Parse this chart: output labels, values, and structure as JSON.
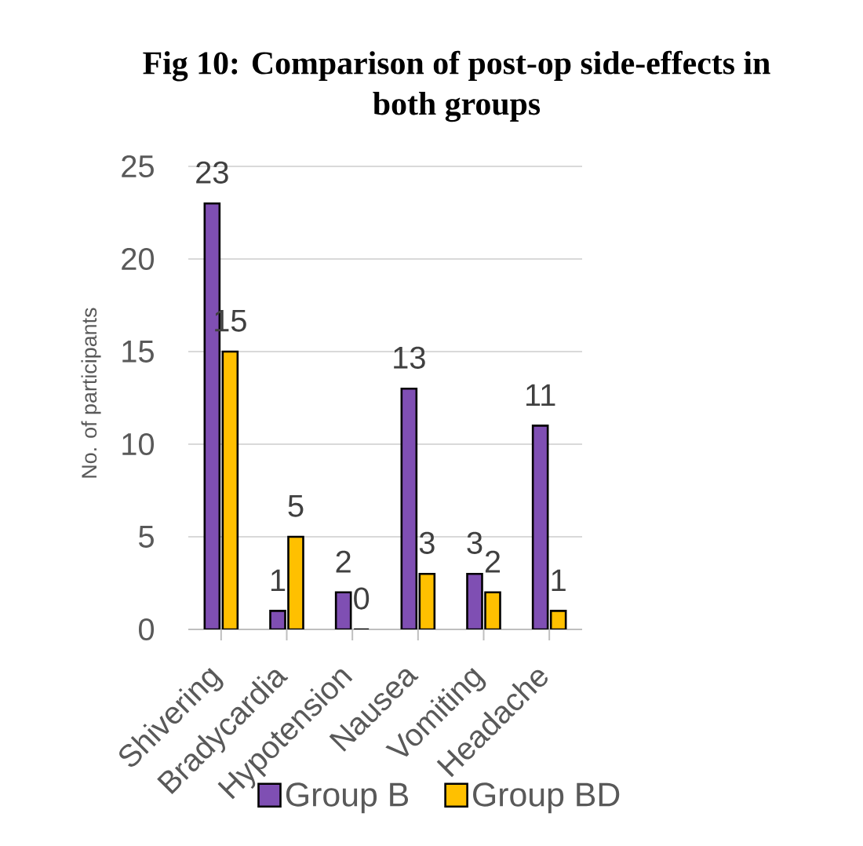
{
  "chart_data": {
    "type": "bar",
    "title": "Fig 10: Comparison of post-op side-effects in both groups",
    "ylabel": "No. of participants",
    "categories": [
      "Shivering",
      "Bradycardia",
      "Hypotension",
      "Nausea",
      "Vomiting",
      "Headache"
    ],
    "series": [
      {
        "name": "Group B",
        "color": "#7f4fb3",
        "values": [
          23,
          1,
          2,
          13,
          3,
          11
        ]
      },
      {
        "name": "Group BD",
        "color": "#ffc000",
        "values": [
          15,
          5,
          0,
          3,
          2,
          1
        ]
      }
    ],
    "ylim": [
      0,
      25
    ],
    "yticks": [
      0,
      5,
      10,
      15,
      20,
      25
    ],
    "grid": "y",
    "legend": "bottom",
    "data_labels": true
  }
}
